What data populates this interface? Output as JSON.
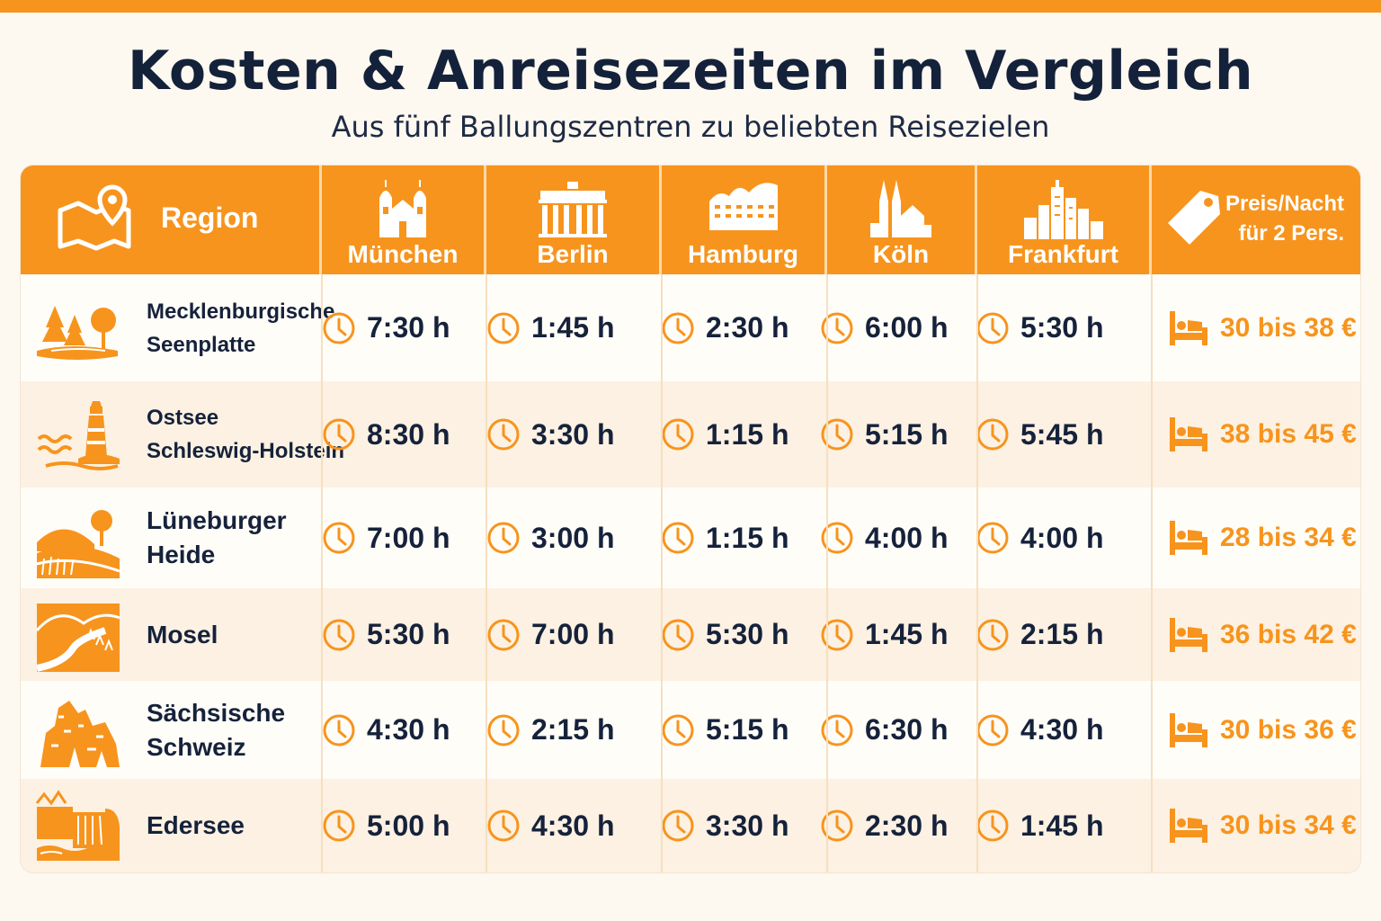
{
  "title": "Kosten & Anreisezeiten im Vergleich",
  "subtitle": "Aus fünf Ballungszentren zu beliebten Reisezielen",
  "colors": {
    "accent": "#f7941d",
    "text": "#16223b",
    "background": "#fdf8f0",
    "row_alt": "#fcf1e2"
  },
  "header": {
    "region_label": "Region",
    "region_icon": "map-pin-icon",
    "cities": [
      {
        "name": "München",
        "icon": "munich-frauenkirche-icon"
      },
      {
        "name": "Berlin",
        "icon": "brandenburg-gate-icon"
      },
      {
        "name": "Hamburg",
        "icon": "elbphilharmonie-icon"
      },
      {
        "name": "Köln",
        "icon": "cologne-cathedral-icon"
      },
      {
        "name": "Frankfurt",
        "icon": "frankfurt-skyline-icon"
      }
    ],
    "price_label_line1": "Preis/Nacht",
    "price_label_line2": "für 2 Pers.",
    "price_icon": "price-tag-icon"
  },
  "rows": [
    {
      "region_line1": "Mecklenburgische",
      "region_line2": "Seenplatte",
      "icon": "forest-lake-icon",
      "times": [
        "7:30 h",
        "1:45 h",
        "2:30 h",
        "6:00 h",
        "5:30 h"
      ],
      "price": "30 bis 38 €"
    },
    {
      "region_line1": "Ostsee",
      "region_line2": "Schleswig-Holstein",
      "icon": "lighthouse-icon",
      "times": [
        "8:30 h",
        "3:30 h",
        "1:15 h",
        "5:15 h",
        "5:45 h"
      ],
      "price": "38 bis 45 €"
    },
    {
      "region_line1": "Lüneburger",
      "region_line2": "Heide",
      "icon": "heath-landscape-icon",
      "times": [
        "7:00 h",
        "3:00 h",
        "1:15 h",
        "4:00 h",
        "4:00 h"
      ],
      "price": "28 bis 34 €"
    },
    {
      "region_line1": "Mosel",
      "region_line2": "",
      "icon": "river-valley-icon",
      "times": [
        "5:30 h",
        "7:00 h",
        "5:30 h",
        "1:45 h",
        "2:15 h"
      ],
      "price": "36 bis 42 €"
    },
    {
      "region_line1": "Sächsische",
      "region_line2": "Schweiz",
      "icon": "sandstone-rocks-icon",
      "times": [
        "4:30 h",
        "2:15 h",
        "5:15 h",
        "6:30 h",
        "4:30 h"
      ],
      "price": "30 bis 36 €"
    },
    {
      "region_line1": "Edersee",
      "region_line2": "",
      "icon": "dam-lake-icon",
      "times": [
        "5:00 h",
        "4:30 h",
        "3:30 h",
        "2:30 h",
        "1:45 h"
      ],
      "price": "30 bis 34 €"
    }
  ]
}
